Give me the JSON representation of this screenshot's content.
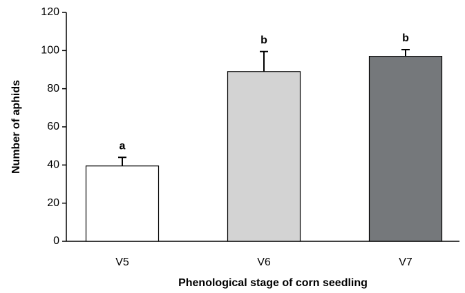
{
  "chart_data": {
    "type": "bar",
    "categories": [
      "V5",
      "V6",
      "V7"
    ],
    "values": [
      39.5,
      89,
      97
    ],
    "errors": [
      4.5,
      10.5,
      3.5
    ],
    "annotations": [
      "a",
      "b",
      "b"
    ],
    "colors": [
      "#ffffff",
      "#d3d3d3",
      "#75787b"
    ],
    "x_label": "Phenological stage of corn seedling",
    "y_label": "Number of aphids",
    "ylim": [
      0,
      120
    ],
    "yticks": [
      0,
      20,
      40,
      60,
      80,
      100,
      120
    ],
    "grid": false
  }
}
